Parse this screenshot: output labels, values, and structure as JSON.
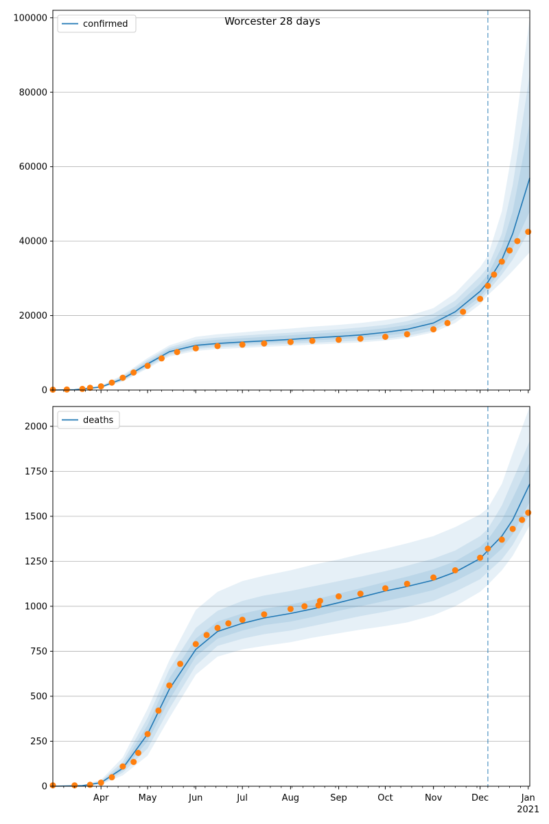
{
  "colors": {
    "model_line": "#1f77b4",
    "observed": "#ff7f0e",
    "band": "#1f77b4",
    "vline": "#1f77b4",
    "grid": "#b0b0b0"
  },
  "chart_data": [
    {
      "type": "line",
      "title": "Worcester 28 days",
      "legend": [
        "confirmed"
      ],
      "legend_position": "top-left",
      "grid": "horizontal",
      "xlim": [
        "2020-03-01",
        "2021-01-02"
      ],
      "ylim": [
        0,
        102000
      ],
      "yticks": [
        0,
        20000,
        40000,
        60000,
        80000,
        100000
      ],
      "ytick_labels": [
        "0",
        "20000",
        "40000",
        "60000",
        "80000",
        "100000"
      ],
      "forecast_start": "2020-12-06",
      "series": [
        {
          "name": "confirmed",
          "kind": "model",
          "x": [
            "2020-03-01",
            "2020-03-15",
            "2020-04-01",
            "2020-04-15",
            "2020-05-01",
            "2020-05-15",
            "2020-06-01",
            "2020-06-15",
            "2020-07-01",
            "2020-07-15",
            "2020-08-01",
            "2020-08-15",
            "2020-09-01",
            "2020-09-15",
            "2020-10-01",
            "2020-10-15",
            "2020-11-01",
            "2020-11-15",
            "2020-12-01",
            "2020-12-06",
            "2020-12-15",
            "2020-12-22",
            "2021-01-02"
          ],
          "values": [
            0,
            100,
            800,
            3000,
            7000,
            10300,
            12000,
            12500,
            12900,
            13200,
            13600,
            14000,
            14400,
            14800,
            15500,
            16300,
            18000,
            21000,
            26500,
            29000,
            35000,
            42000,
            57000
          ],
          "bands": [
            {
              "lower": [
                0,
                60,
                550,
                2300,
                5800,
                9000,
                10500,
                11000,
                11300,
                11600,
                11900,
                12200,
                12500,
                12800,
                13300,
                14000,
                15500,
                18000,
                23000,
                25500,
                29000,
                32000,
                37000
              ],
              "upper": [
                0,
                160,
                1200,
                4000,
                8600,
                12000,
                14300,
                15000,
                15500,
                16000,
                16500,
                17000,
                17500,
                18000,
                18800,
                19800,
                22000,
                26000,
                33000,
                36000,
                48000,
                65000,
                100000
              ]
            },
            {
              "lower": [
                0,
                70,
                620,
                2500,
                6100,
                9400,
                11000,
                11500,
                11800,
                12100,
                12400,
                12700,
                13000,
                13300,
                13800,
                14500,
                16000,
                19000,
                24000,
                26500,
                31000,
                35000,
                43000
              ],
              "upper": [
                0,
                140,
                1050,
                3700,
                8100,
                11500,
                13500,
                14100,
                14600,
                15000,
                15400,
                15800,
                16300,
                16800,
                17500,
                18500,
                20500,
                24000,
                30500,
                33000,
                42000,
                55000,
                85000
              ]
            },
            {
              "lower": [
                0,
                80,
                700,
                2700,
                6500,
                9800,
                11400,
                11900,
                12300,
                12600,
                12900,
                13300,
                13700,
                14000,
                14600,
                15300,
                16900,
                20000,
                25000,
                27500,
                32500,
                38000,
                48000
              ],
              "upper": [
                0,
                125,
                950,
                3400,
                7600,
                11000,
                12900,
                13500,
                13900,
                14300,
                14700,
                15100,
                15500,
                15900,
                16600,
                17500,
                19300,
                22500,
                28500,
                31000,
                38500,
                48000,
                72000
              ]
            }
          ]
        },
        {
          "name": "observed",
          "kind": "points",
          "x": [
            "2020-03-01",
            "2020-03-10",
            "2020-03-20",
            "2020-03-25",
            "2020-04-01",
            "2020-04-08",
            "2020-04-15",
            "2020-04-22",
            "2020-05-01",
            "2020-05-10",
            "2020-05-20",
            "2020-06-01",
            "2020-06-15",
            "2020-07-01",
            "2020-07-15",
            "2020-08-01",
            "2020-08-15",
            "2020-09-01",
            "2020-09-15",
            "2020-10-01",
            "2020-10-15",
            "2020-11-01",
            "2020-11-10",
            "2020-11-20",
            "2020-12-01",
            "2020-12-06",
            "2020-12-10",
            "2020-12-15",
            "2020-12-20",
            "2020-12-25",
            "2021-01-01"
          ],
          "values": [
            100,
            150,
            300,
            600,
            1000,
            2000,
            3300,
            4700,
            6500,
            8500,
            10200,
            11200,
            11800,
            12200,
            12500,
            12900,
            13200,
            13500,
            13800,
            14300,
            15000,
            16300,
            18000,
            21000,
            24500,
            28000,
            31000,
            34500,
            37500,
            40000,
            42500
          ]
        }
      ]
    },
    {
      "type": "line",
      "title": "",
      "legend": [
        "deaths"
      ],
      "legend_position": "top-left",
      "grid": "horizontal",
      "xlim": [
        "2020-03-01",
        "2021-01-02"
      ],
      "ylim": [
        0,
        2110
      ],
      "yticks": [
        0,
        250,
        500,
        750,
        1000,
        1250,
        1500,
        1750,
        2000
      ],
      "ytick_labels": [
        "0",
        "250",
        "500",
        "750",
        "1000",
        "1250",
        "1500",
        "1750",
        "2000"
      ],
      "forecast_start": "2020-12-06",
      "xticks": [
        "2020-04-01",
        "2020-05-01",
        "2020-06-01",
        "2020-07-01",
        "2020-08-01",
        "2020-09-01",
        "2020-10-01",
        "2020-11-01",
        "2020-12-01",
        "2021-01-01"
      ],
      "xtick_labels": [
        "Apr",
        "May",
        "Jun",
        "Jul",
        "Aug",
        "Sep",
        "Oct",
        "Nov",
        "Dec",
        "Jan"
      ],
      "xtick_year_label": "2021",
      "series": [
        {
          "name": "deaths",
          "kind": "model",
          "x": [
            "2020-03-01",
            "2020-03-20",
            "2020-04-01",
            "2020-04-15",
            "2020-05-01",
            "2020-05-15",
            "2020-06-01",
            "2020-06-15",
            "2020-07-01",
            "2020-07-15",
            "2020-08-01",
            "2020-08-15",
            "2020-09-01",
            "2020-09-15",
            "2020-10-01",
            "2020-10-15",
            "2020-11-01",
            "2020-11-15",
            "2020-12-01",
            "2020-12-06",
            "2020-12-15",
            "2020-12-22",
            "2021-01-02"
          ],
          "values": [
            0,
            3,
            20,
            100,
            290,
            540,
            760,
            860,
            905,
            935,
            960,
            985,
            1020,
            1050,
            1085,
            1110,
            1145,
            1190,
            1265,
            1310,
            1390,
            1480,
            1680
          ],
          "bands": [
            {
              "lower": [
                0,
                1,
                10,
                60,
                170,
                380,
                620,
                720,
                760,
                780,
                800,
                825,
                850,
                870,
                890,
                910,
                950,
                1000,
                1080,
                1120,
                1200,
                1280,
                1450
              ],
              "upper": [
                0,
                6,
                35,
                160,
                430,
                700,
                980,
                1080,
                1140,
                1170,
                1200,
                1230,
                1260,
                1290,
                1320,
                1350,
                1390,
                1440,
                1510,
                1545,
                1680,
                1850,
                2110
              ]
            },
            {
              "lower": [
                0,
                1,
                13,
                75,
                210,
                430,
                670,
                780,
                820,
                845,
                865,
                890,
                920,
                945,
                970,
                995,
                1030,
                1080,
                1150,
                1190,
                1260,
                1340,
                1510
              ],
              "upper": [
                0,
                5,
                29,
                135,
                380,
                650,
                880,
                975,
                1030,
                1060,
                1085,
                1110,
                1140,
                1165,
                1195,
                1225,
                1265,
                1310,
                1390,
                1430,
                1560,
                1700,
                1920
              ]
            },
            {
              "lower": [
                0,
                2,
                16,
                88,
                250,
                480,
                720,
                820,
                865,
                895,
                915,
                940,
                975,
                1000,
                1030,
                1055,
                1090,
                1140,
                1210,
                1250,
                1320,
                1400,
                1580
              ],
              "upper": [
                0,
                4,
                25,
                115,
                340,
                600,
                820,
                915,
                960,
                985,
                1010,
                1035,
                1070,
                1100,
                1135,
                1165,
                1205,
                1250,
                1330,
                1370,
                1480,
                1600,
                1800
              ]
            }
          ]
        },
        {
          "name": "observed",
          "kind": "points",
          "x": [
            "2020-03-01",
            "2020-03-15",
            "2020-03-25",
            "2020-04-01",
            "2020-04-08",
            "2020-04-15",
            "2020-04-22",
            "2020-04-25",
            "2020-05-01",
            "2020-05-08",
            "2020-05-15",
            "2020-05-22",
            "2020-06-01",
            "2020-06-08",
            "2020-06-15",
            "2020-06-22",
            "2020-07-01",
            "2020-07-15",
            "2020-08-01",
            "2020-08-10",
            "2020-08-19",
            "2020-08-20",
            "2020-09-01",
            "2020-09-15",
            "2020-10-01",
            "2020-10-15",
            "2020-11-01",
            "2020-11-15",
            "2020-12-01",
            "2020-12-06",
            "2020-12-15",
            "2020-12-22",
            "2020-12-28",
            "2021-01-01"
          ],
          "values": [
            5,
            5,
            8,
            20,
            50,
            110,
            135,
            185,
            290,
            420,
            560,
            680,
            790,
            840,
            880,
            905,
            925,
            955,
            985,
            1000,
            1005,
            1030,
            1055,
            1070,
            1100,
            1125,
            1160,
            1200,
            1270,
            1320,
            1370,
            1430,
            1480,
            1520
          ]
        }
      ]
    }
  ]
}
